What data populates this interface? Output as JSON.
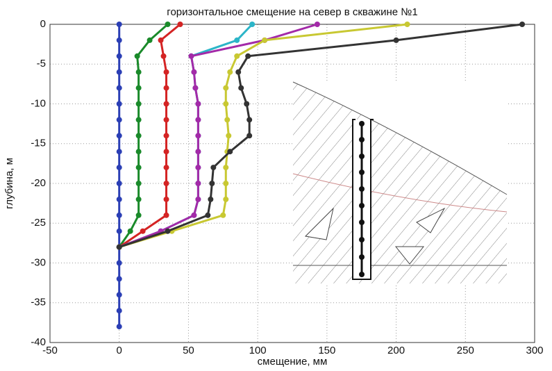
{
  "chart_data": {
    "type": "line",
    "title": "горизонтальное смещение на север в скважине №1",
    "xlabel": "смещение, мм",
    "ylabel": "глубина, м",
    "y": [
      0,
      -2,
      -4,
      -6,
      -8,
      -10,
      -12,
      -14,
      -16,
      -18,
      -20,
      -22,
      -24,
      -26,
      -28,
      -30,
      -32,
      -34,
      -36,
      -38
    ],
    "series": [
      {
        "color": "#2b3fb5",
        "values": [
          0,
          0,
          0,
          0,
          0,
          0,
          0,
          0,
          0,
          0,
          0,
          0,
          0,
          0,
          0,
          0,
          0,
          0,
          0,
          0
        ]
      },
      {
        "color": "#1a8a2a",
        "values": [
          35,
          22,
          13,
          14,
          14,
          14,
          14,
          14,
          14,
          14,
          14,
          14,
          14,
          8,
          0,
          null,
          null,
          null,
          null,
          null
        ]
      },
      {
        "color": "#d42424",
        "values": [
          44,
          30,
          32,
          34,
          34,
          34,
          34,
          34,
          34,
          34,
          34,
          34,
          34,
          17,
          0,
          null,
          null,
          null,
          null,
          null
        ]
      },
      {
        "color": "#2cb5c8",
        "values": [
          96,
          85,
          52,
          54,
          55,
          57,
          57,
          57,
          57,
          57,
          57,
          57,
          54,
          30,
          0,
          null,
          null,
          null,
          null,
          null
        ]
      },
      {
        "color": "#a32aa8",
        "values": [
          143,
          105,
          52,
          54,
          55,
          57,
          57,
          57,
          57,
          57,
          57,
          57,
          54,
          30,
          0,
          null,
          null,
          null,
          null,
          null
        ]
      },
      {
        "color": "#c8c832",
        "values": [
          208,
          105,
          85,
          80,
          77,
          77,
          78,
          79,
          78,
          77,
          77,
          77,
          75,
          38,
          0,
          null,
          null,
          null,
          null,
          null
        ]
      },
      {
        "color": "#333333",
        "values": [
          291,
          200,
          93,
          86,
          88,
          92,
          94,
          94,
          80,
          68,
          67,
          66,
          64,
          35,
          0,
          null,
          null,
          null,
          null,
          null
        ]
      }
    ],
    "xlim": [
      -50,
      300
    ],
    "xticks": [
      -50,
      0,
      50,
      100,
      150,
      200,
      250,
      300
    ],
    "ylim": [
      -40,
      0
    ],
    "yticks": [
      -40,
      -35,
      -30,
      -25,
      -20,
      -15,
      -10,
      -5,
      0
    ],
    "grid": true
  }
}
